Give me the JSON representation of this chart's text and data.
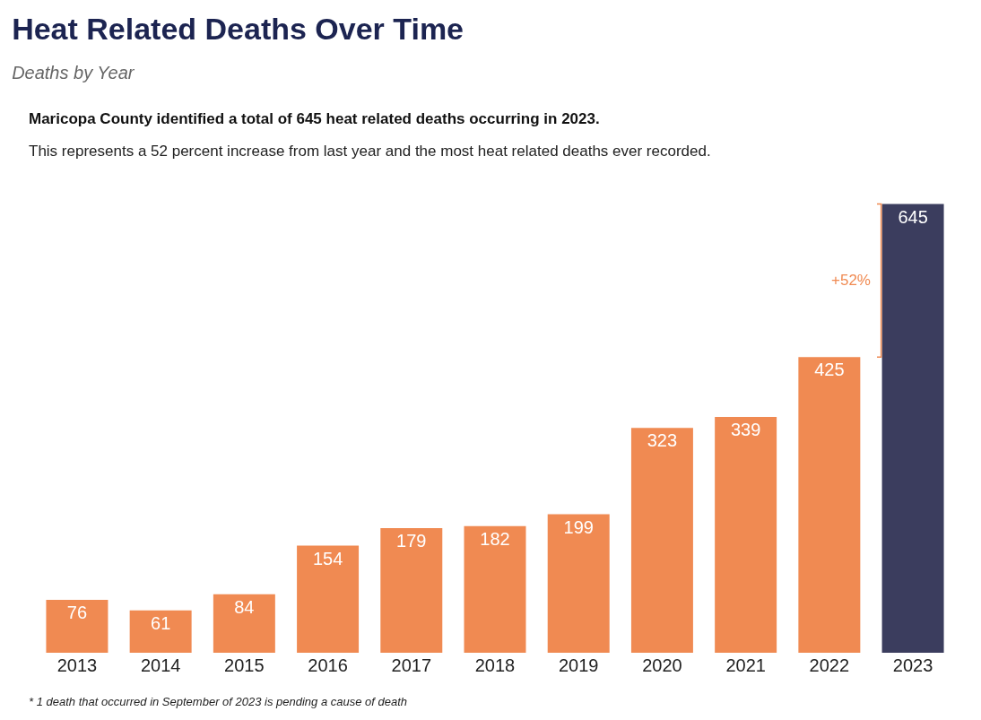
{
  "chart_data": {
    "type": "bar",
    "title": "Heat Related Deaths Over Time",
    "subtitle": "Deaths by Year",
    "categories": [
      "2013",
      "2014",
      "2015",
      "2016",
      "2017",
      "2018",
      "2019",
      "2020",
      "2021",
      "2022",
      "2023"
    ],
    "values": [
      76,
      61,
      84,
      154,
      179,
      182,
      199,
      323,
      339,
      425,
      645
    ],
    "colors": [
      "#f08a52",
      "#f08a52",
      "#f08a52",
      "#f08a52",
      "#f08a52",
      "#f08a52",
      "#f08a52",
      "#f08a52",
      "#f08a52",
      "#f08a52",
      "#3b3d5e"
    ],
    "data_labels": true,
    "annotations": [
      "Maricopa County identified a total of 645 heat related deaths occurring in 2023.",
      "This represents a 52 percent increase from last year and the most heat related deaths ever recorded.",
      "* 1 death that occurred in September of 2023 is pending a cause of death",
      "+52%"
    ],
    "legend": false
  }
}
